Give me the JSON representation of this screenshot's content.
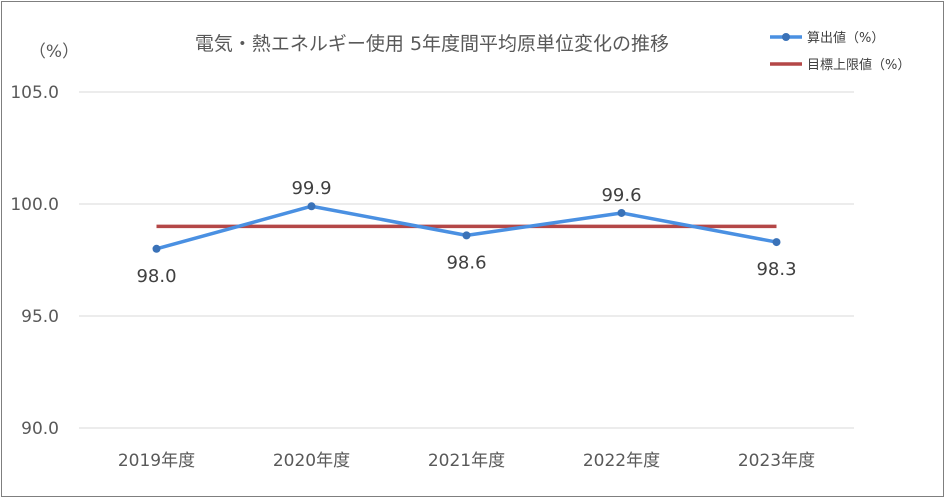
{
  "chart_data": {
    "type": "line",
    "title": "電気・熱エネルギー使用 5年度間平均原単位変化の推移",
    "ylabel": "（%）",
    "categories": [
      "2019年度",
      "2020年度",
      "2021年度",
      "2022年度",
      "2023年度"
    ],
    "ylim": [
      90,
      105
    ],
    "yticks": [
      90,
      95,
      100,
      105
    ],
    "ytick_labels": [
      "90.0",
      "95.0",
      "100.0",
      "105.0"
    ],
    "grid": true,
    "legend_position": "top-right",
    "series": [
      {
        "name": "算出値（%）",
        "values": [
          98.0,
          99.9,
          98.6,
          99.6,
          98.3
        ],
        "labels": [
          "98.0",
          "99.9",
          "98.6",
          "99.6",
          "98.3"
        ],
        "label_positions": [
          "below",
          "above",
          "below",
          "above",
          "below"
        ],
        "color": "#4a90e2",
        "markers": true
      },
      {
        "name": "目標上限値（%）",
        "values": [
          99.0,
          99.0,
          99.0,
          99.0,
          99.0
        ],
        "color": "#b44747",
        "markers": false
      }
    ]
  }
}
